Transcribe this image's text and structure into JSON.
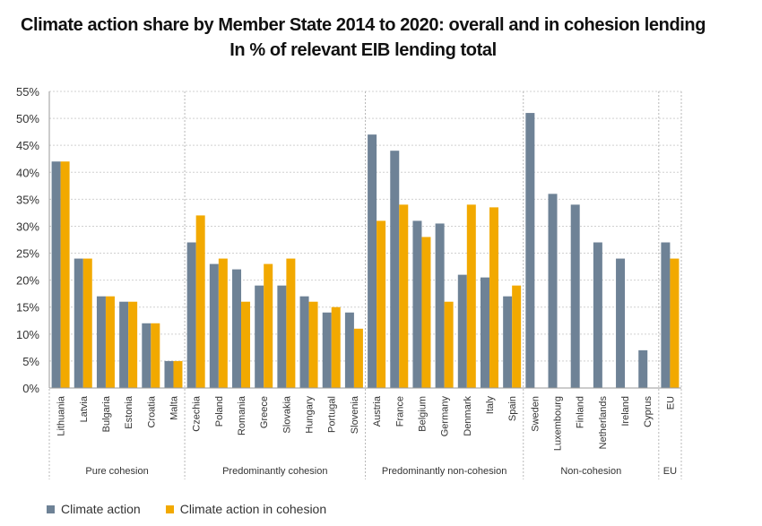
{
  "title": "Climate action share by Member State 2014 to 2020: overall and in cohesion lending",
  "subtitle": "In % of relevant EIB lending total",
  "colors": {
    "climate_action": "#6e8296",
    "climate_action_cohesion": "#f2a900"
  },
  "chart_data": {
    "type": "bar",
    "ylim": [
      0,
      55
    ],
    "yticks": [
      "0%",
      "5%",
      "10%",
      "15%",
      "20%",
      "25%",
      "30%",
      "35%",
      "40%",
      "45%",
      "50%",
      "55%"
    ],
    "grid": true,
    "legend_position": "bottom-left",
    "categories": [
      "Lithuania",
      "Latvia",
      "Bulgaria",
      "Estonia",
      "Croatia",
      "Malta",
      "Czechia",
      "Poland",
      "Romania",
      "Greece",
      "Slovakia",
      "Hungary",
      "Portugal",
      "Slovenia",
      "Austria",
      "France",
      "Belgium",
      "Germany",
      "Denmark",
      "Italy",
      "Spain",
      "Sweden",
      "Luxembourg",
      "Finland",
      "Netherlands",
      "Ireland",
      "Cyprus",
      "EU"
    ],
    "groups": [
      {
        "label": "Pure cohesion",
        "count": 6
      },
      {
        "label": "Predominantly cohesion",
        "count": 8
      },
      {
        "label": "Predominantly non-cohesion",
        "count": 7
      },
      {
        "label": "Non-cohesion",
        "count": 6
      },
      {
        "label": "EU",
        "count": 1
      }
    ],
    "series": [
      {
        "name": "Climate action",
        "values": [
          42,
          24,
          17,
          16,
          12,
          5,
          27,
          23,
          22,
          19,
          19,
          17,
          14,
          14,
          47,
          44,
          31,
          30.5,
          21,
          20.5,
          17,
          51,
          36,
          34,
          27,
          24,
          7,
          27
        ]
      },
      {
        "name": "Climate action in cohesion",
        "values": [
          42,
          24,
          17,
          16,
          12,
          5,
          32,
          24,
          16,
          23,
          24,
          16,
          15,
          11,
          31,
          34,
          28,
          16,
          34,
          33.5,
          19,
          null,
          null,
          null,
          null,
          null,
          null,
          24
        ]
      }
    ]
  }
}
